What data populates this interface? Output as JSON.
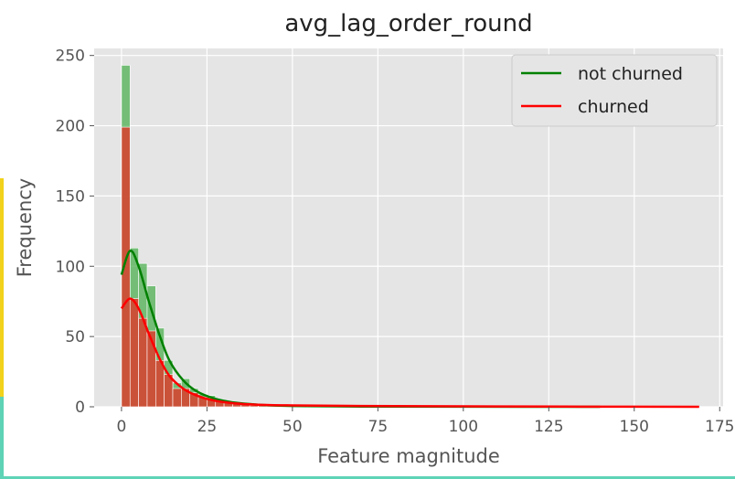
{
  "chart_data": {
    "type": "histogram",
    "title": "avg_lag_order_round",
    "xlabel": "Feature magnitude",
    "ylabel": "Frequency",
    "xlim": [
      -8,
      176
    ],
    "ylim": [
      0,
      255
    ],
    "xticks": [
      0,
      25,
      50,
      75,
      100,
      125,
      150,
      175
    ],
    "yticks": [
      0,
      50,
      100,
      150,
      200,
      250
    ],
    "grid": true,
    "legend_position": "top-right",
    "bin_width": 2.5,
    "series": [
      {
        "name": "not churned",
        "color": "#008000",
        "bar_color": "#4caf50",
        "bins_start": 0,
        "values": [
          243,
          113,
          102,
          86,
          56,
          33,
          17,
          20,
          13,
          9,
          8,
          5,
          4,
          3,
          2,
          2,
          1,
          1,
          1,
          1,
          1,
          1
        ],
        "kde": [
          [
            0,
            94
          ],
          [
            2.5,
            111
          ],
          [
            5,
            100
          ],
          [
            8,
            75
          ],
          [
            11,
            52
          ],
          [
            14,
            33
          ],
          [
            18,
            19
          ],
          [
            22,
            11
          ],
          [
            27,
            6
          ],
          [
            33,
            3
          ],
          [
            40,
            1.5
          ],
          [
            50,
            0.6
          ],
          [
            70,
            0.2
          ],
          [
            100,
            0.05
          ],
          [
            140,
            0
          ]
        ]
      },
      {
        "name": "churned",
        "color": "#ff0000",
        "bar_color": "#d9402e",
        "bins_start": 0,
        "values": [
          199,
          77,
          63,
          54,
          33,
          23,
          13,
          13,
          10,
          7,
          6,
          4,
          3,
          2,
          2,
          1,
          1,
          1,
          1,
          1,
          1,
          1
        ],
        "kde": [
          [
            0,
            70
          ],
          [
            2.5,
            77
          ],
          [
            5,
            70
          ],
          [
            8,
            52
          ],
          [
            11,
            35
          ],
          [
            14,
            22
          ],
          [
            18,
            13
          ],
          [
            22,
            8
          ],
          [
            27,
            4.5
          ],
          [
            33,
            2.5
          ],
          [
            40,
            1.5
          ],
          [
            50,
            1
          ],
          [
            70,
            0.6
          ],
          [
            100,
            0.3
          ],
          [
            130,
            0.15
          ],
          [
            169,
            0
          ]
        ]
      }
    ]
  }
}
